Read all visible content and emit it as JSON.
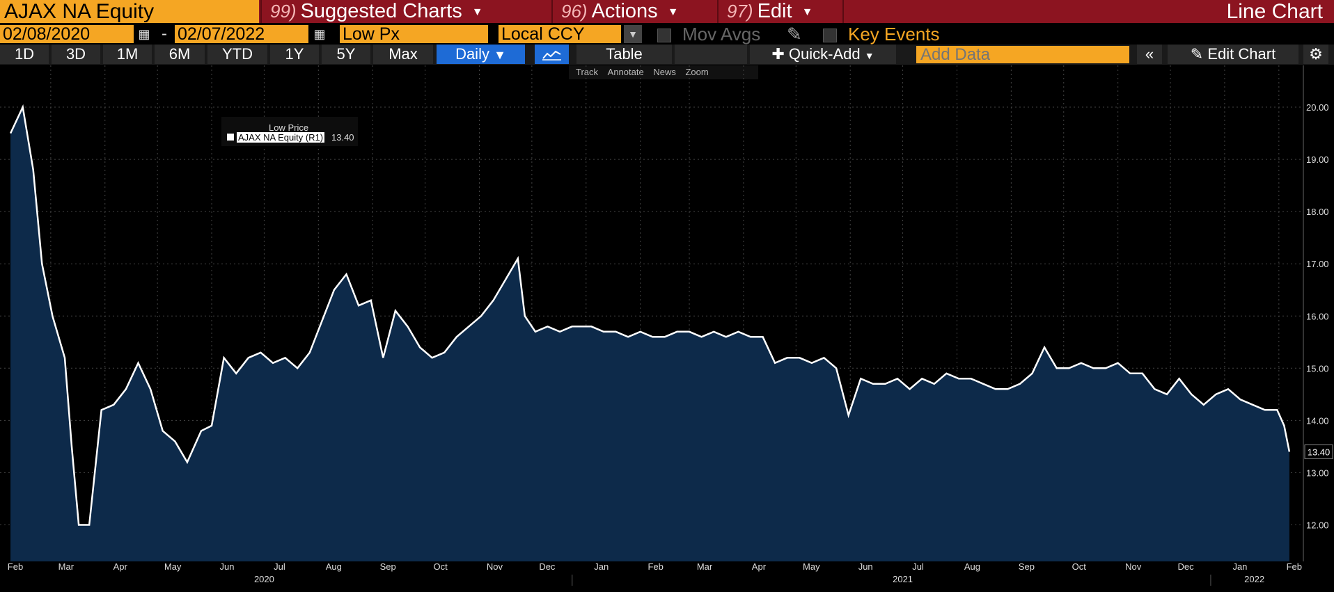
{
  "header": {
    "ticker": "AJAX NA Equity",
    "menus": [
      {
        "num": "99)",
        "label": "Suggested Charts"
      },
      {
        "num": "96)",
        "label": "Actions"
      },
      {
        "num": "97)",
        "label": "Edit"
      }
    ],
    "view_title": "Line Chart"
  },
  "controls": {
    "start_date": "02/08/2020",
    "separator": "-",
    "end_date": "02/07/2022",
    "field": "Low Px",
    "currency": "Local CCY",
    "mov_avgs": "Mov Avgs",
    "key_events": "Key Events"
  },
  "toolbar": {
    "ranges": [
      "1D",
      "3D",
      "1M",
      "6M",
      "YTD",
      "1Y",
      "5Y",
      "Max"
    ],
    "frequency": "Daily",
    "table": "Table",
    "quick_add": "Quick-Add",
    "add_data_placeholder": "Add Data",
    "edit_chart": "Edit Chart"
  },
  "tools": [
    "Track",
    "Annotate",
    "News",
    "Zoom"
  ],
  "legend": {
    "title": "Low Price",
    "series": "AJAX NA Equity  (R1)",
    "value": "13.40"
  },
  "colors": {
    "accent": "#f5a623",
    "header": "#8c1420",
    "selected": "#1e6bd6",
    "area": "#0d2a4a",
    "line": "#ffffff"
  },
  "chart_data": {
    "type": "area",
    "ylim": [
      11.3,
      20.8
    ],
    "yticks": [
      "12.00",
      "13.00",
      "14.00",
      "15.00",
      "16.00",
      "17.00",
      "18.00",
      "19.00",
      "20.00"
    ],
    "last_value_label": "13.40",
    "xticks": [
      "Feb",
      "Mar",
      "Apr",
      "May",
      "Jun",
      "Jul",
      "Aug",
      "Sep",
      "Oct",
      "Nov",
      "Dec",
      "Jan",
      "Feb",
      "Mar",
      "Apr",
      "May",
      "Jun",
      "Jul",
      "Aug",
      "Sep",
      "Oct",
      "Nov",
      "Dec",
      "Jan",
      "Feb"
    ],
    "years": [
      "2020",
      "2021",
      "2022"
    ],
    "series": [
      {
        "x": [
          "2020-02-07",
          "2020-02-14",
          "2020-02-20",
          "2020-02-25",
          "2020-03-02",
          "2020-03-09",
          "2020-03-13",
          "2020-03-17",
          "2020-03-23",
          "2020-03-30",
          "2020-04-06",
          "2020-04-13",
          "2020-04-20",
          "2020-04-27",
          "2020-05-04",
          "2020-05-11",
          "2020-05-18",
          "2020-05-26",
          "2020-06-01",
          "2020-06-08",
          "2020-06-15",
          "2020-06-22",
          "2020-06-29",
          "2020-07-06",
          "2020-07-13",
          "2020-07-20",
          "2020-07-27",
          "2020-08-03",
          "2020-08-10",
          "2020-08-17",
          "2020-08-24",
          "2020-08-31",
          "2020-09-07",
          "2020-09-14",
          "2020-09-21",
          "2020-09-28",
          "2020-10-05",
          "2020-10-12",
          "2020-10-19",
          "2020-10-26",
          "2020-11-02",
          "2020-11-09",
          "2020-11-16",
          "2020-11-23",
          "2020-11-27",
          "2020-12-03",
          "2020-12-10",
          "2020-12-17",
          "2020-12-24",
          "2021-01-04",
          "2021-01-11",
          "2021-01-18",
          "2021-01-25",
          "2021-02-01",
          "2021-02-08",
          "2021-02-15",
          "2021-02-22",
          "2021-03-01",
          "2021-03-08",
          "2021-03-15",
          "2021-03-22",
          "2021-03-29",
          "2021-04-05",
          "2021-04-12",
          "2021-04-19",
          "2021-04-26",
          "2021-05-03",
          "2021-05-10",
          "2021-05-17",
          "2021-05-24",
          "2021-05-31",
          "2021-06-07",
          "2021-06-14",
          "2021-06-21",
          "2021-06-28",
          "2021-07-05",
          "2021-07-12",
          "2021-07-19",
          "2021-07-26",
          "2021-08-02",
          "2021-08-09",
          "2021-08-16",
          "2021-08-23",
          "2021-08-30",
          "2021-09-06",
          "2021-09-13",
          "2021-09-20",
          "2021-09-27",
          "2021-10-04",
          "2021-10-11",
          "2021-10-18",
          "2021-10-25",
          "2021-11-01",
          "2021-11-08",
          "2021-11-15",
          "2021-11-22",
          "2021-11-29",
          "2021-12-06",
          "2021-12-13",
          "2021-12-20",
          "2021-12-27",
          "2022-01-03",
          "2022-01-10",
          "2022-01-17",
          "2022-01-24",
          "2022-01-31",
          "2022-02-04",
          "2022-02-07"
        ],
        "y": [
          19.5,
          20.0,
          18.8,
          17.0,
          16.0,
          15.2,
          13.5,
          12.0,
          12.0,
          14.2,
          14.3,
          14.6,
          15.1,
          14.6,
          13.8,
          13.6,
          13.2,
          13.8,
          13.9,
          15.2,
          14.9,
          15.2,
          15.3,
          15.1,
          15.2,
          15.0,
          15.3,
          15.9,
          16.5,
          16.8,
          16.2,
          16.3,
          15.2,
          16.1,
          15.8,
          15.4,
          15.2,
          15.3,
          15.6,
          15.8,
          16.0,
          16.3,
          16.7,
          17.1,
          16.0,
          15.7,
          15.8,
          15.7,
          15.8,
          15.8,
          15.7,
          15.7,
          15.6,
          15.7,
          15.6,
          15.6,
          15.7,
          15.7,
          15.6,
          15.7,
          15.6,
          15.7,
          15.6,
          15.6,
          15.1,
          15.2,
          15.2,
          15.1,
          15.2,
          15.0,
          14.1,
          14.8,
          14.7,
          14.7,
          14.8,
          14.6,
          14.8,
          14.7,
          14.9,
          14.8,
          14.8,
          14.7,
          14.6,
          14.6,
          14.7,
          14.9,
          15.4,
          15.0,
          15.0,
          15.1,
          15.0,
          15.0,
          15.1,
          14.9,
          14.9,
          14.6,
          14.5,
          14.8,
          14.5,
          14.3,
          14.5,
          14.6,
          14.4,
          14.3,
          14.2,
          14.2,
          13.9,
          13.4
        ]
      }
    ]
  }
}
